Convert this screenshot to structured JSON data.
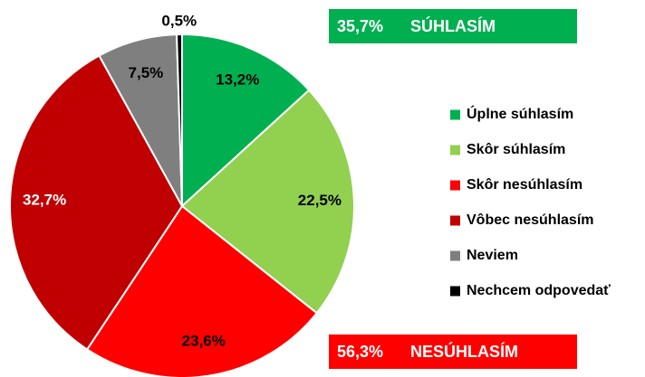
{
  "chart_data": {
    "type": "pie",
    "categories": [
      "Úplne súhlasím",
      "Skôr súhlasím",
      "Skôr nesúhlasím",
      "Vôbec nesúhlasím",
      "Neviem",
      "Nechcem odpovedať"
    ],
    "values": [
      13.2,
      22.5,
      23.6,
      32.7,
      7.5,
      0.5
    ],
    "value_labels": [
      "13,2%",
      "22,5%",
      "23,6%",
      "32,7%",
      "7,5%",
      "0,5%"
    ],
    "colors": [
      "#00b050",
      "#92d050",
      "#ff0000",
      "#c00000",
      "#7f7f7f",
      "#000000"
    ],
    "label_colors": [
      "#000000",
      "#000000",
      "#000000",
      "#ffffff",
      "#000000",
      "#000000"
    ],
    "legend": "right",
    "annotations": [
      {
        "percent": "35,7%",
        "text": "SÚHLASÍM",
        "color": "#00b050"
      },
      {
        "percent": "56,3%",
        "text": "NESÚHLASÍM",
        "color": "#ff0000"
      }
    ]
  }
}
